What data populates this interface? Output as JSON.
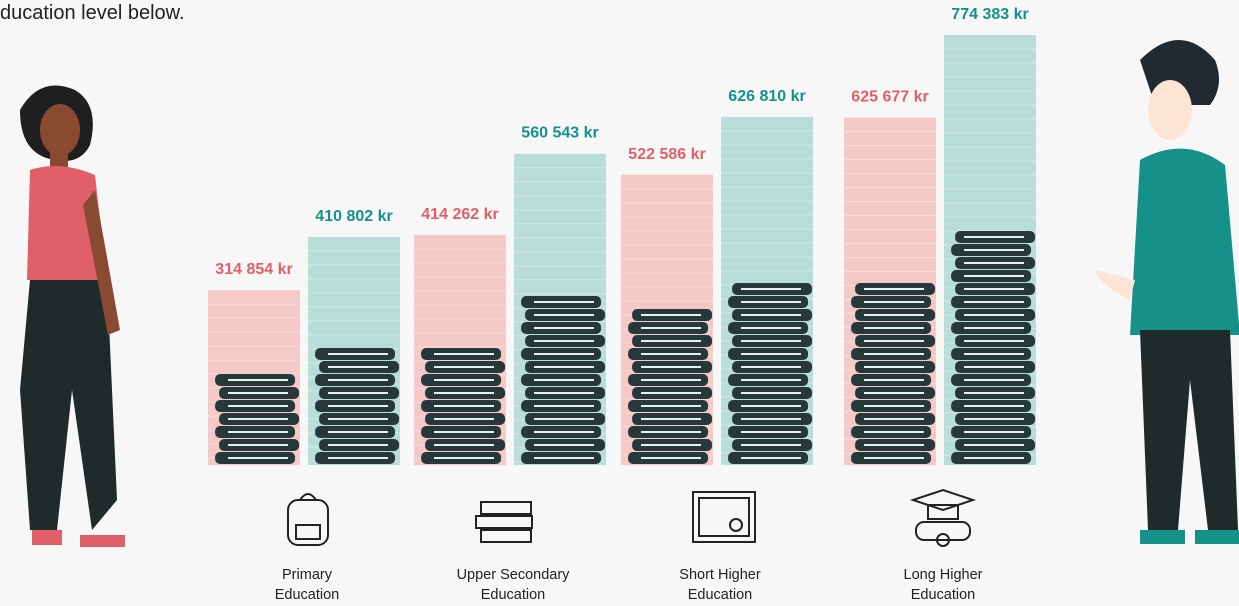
{
  "chart_data": {
    "type": "bar",
    "subtitle": "ducation level below.",
    "categories": [
      "Primary Education",
      "Upper Secondary Education",
      "Short Higher Education",
      "Long Higher Education"
    ],
    "series": [
      {
        "color": "#f4c9c7",
        "label_color": "#e0606a",
        "values": [
          314854,
          414262,
          522586,
          625677
        ],
        "value_labels": [
          "314 854 kr",
          "414 262 kr",
          "522 586 kr",
          "625 677 kr"
        ]
      },
      {
        "color": "#b9ddd8",
        "label_color": "#16918a",
        "values": [
          410802,
          560543,
          626810,
          774383
        ],
        "value_labels": [
          "410 802 kr",
          "560 543 kr",
          "626 810 kr",
          "774 383 kr"
        ]
      }
    ]
  }
}
